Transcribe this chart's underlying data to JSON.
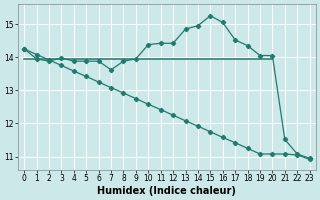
{
  "xlabel": "Humidex (Indice chaleur)",
  "bg_color": "#cde8e8",
  "grid_color": "#ffffff",
  "line_color": "#217a6e",
  "xlim": [
    -0.5,
    23.5
  ],
  "ylim": [
    10.6,
    15.6
  ],
  "yticks": [
    11,
    12,
    13,
    14,
    15
  ],
  "xticks": [
    0,
    1,
    2,
    3,
    4,
    5,
    6,
    7,
    8,
    9,
    10,
    11,
    12,
    13,
    14,
    15,
    16,
    17,
    18,
    19,
    20,
    21,
    22,
    23
  ],
  "line1_x": [
    0,
    1,
    2,
    3,
    4,
    5,
    6,
    7,
    8,
    9,
    10,
    11,
    12,
    13,
    14,
    15,
    16,
    17,
    18,
    19,
    20,
    21,
    22,
    23
  ],
  "line1_y": [
    14.25,
    13.95,
    13.88,
    13.98,
    13.88,
    13.88,
    13.88,
    13.62,
    13.88,
    13.95,
    14.38,
    14.42,
    14.42,
    14.85,
    14.95,
    15.25,
    15.05,
    14.52,
    14.35,
    14.05,
    14.05,
    11.52,
    11.08,
    10.95
  ],
  "line1_has_markers": true,
  "line2_x": [
    0,
    20
  ],
  "line2_y": [
    13.95,
    13.95
  ],
  "line2_has_markers": false,
  "line3_x": [
    0,
    1,
    2,
    3,
    4,
    5,
    6,
    7,
    8,
    9,
    10,
    11,
    12,
    13,
    14,
    15,
    16,
    17,
    18,
    19,
    20,
    21,
    22,
    23
  ],
  "line3_y": [
    14.25,
    14.08,
    13.92,
    13.75,
    13.58,
    13.42,
    13.25,
    13.08,
    12.92,
    12.75,
    12.58,
    12.42,
    12.25,
    12.08,
    11.92,
    11.75,
    11.58,
    11.42,
    11.25,
    11.08,
    11.08,
    11.08,
    11.05,
    10.92
  ],
  "line3_has_markers": true,
  "marker_style": "D",
  "marker_size": 2.2,
  "linewidth": 0.9,
  "xlabel_fontsize": 7,
  "tick_fontsize": 5.5
}
